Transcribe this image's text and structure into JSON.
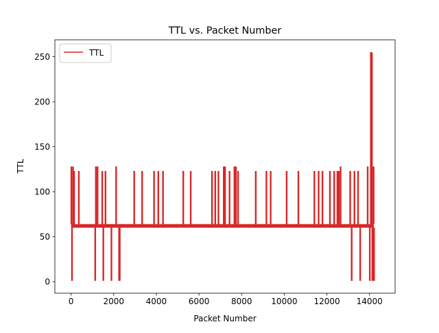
{
  "chart_data": {
    "type": "line",
    "title": "TTL vs. Packet Number",
    "xlabel": "Packet Number",
    "ylabel": "TTL",
    "xlim": [
      -760,
      15200
    ],
    "ylim": [
      -12.75,
      268.75
    ],
    "xticks": [
      0,
      2000,
      4000,
      6000,
      8000,
      10000,
      12000,
      14000
    ],
    "yticks": [
      0,
      50,
      100,
      150,
      200,
      250
    ],
    "grid": false,
    "legend_position": "top-left",
    "series": [
      {
        "name": "TTL",
        "color": "#d62728",
        "baseline_range": [
          60,
          64
        ],
        "baseline_x_range": [
          0,
          14200
        ],
        "spikes": [
          {
            "x": 0,
            "y": 128
          },
          {
            "x": 30,
            "y": 1
          },
          {
            "x": 80,
            "y": 128
          },
          {
            "x": 130,
            "y": 123
          },
          {
            "x": 350,
            "y": 123
          },
          {
            "x": 1120,
            "y": 1
          },
          {
            "x": 1150,
            "y": 128
          },
          {
            "x": 1230,
            "y": 128
          },
          {
            "x": 1450,
            "y": 123
          },
          {
            "x": 1500,
            "y": 1
          },
          {
            "x": 1600,
            "y": 123
          },
          {
            "x": 1880,
            "y": 1
          },
          {
            "x": 2100,
            "y": 128
          },
          {
            "x": 2240,
            "y": 1
          },
          {
            "x": 2270,
            "y": 1
          },
          {
            "x": 2950,
            "y": 123
          },
          {
            "x": 3320,
            "y": 123
          },
          {
            "x": 3880,
            "y": 123
          },
          {
            "x": 4080,
            "y": 123
          },
          {
            "x": 4300,
            "y": 123
          },
          {
            "x": 5250,
            "y": 123
          },
          {
            "x": 5600,
            "y": 123
          },
          {
            "x": 6600,
            "y": 123
          },
          {
            "x": 6750,
            "y": 123
          },
          {
            "x": 6900,
            "y": 123
          },
          {
            "x": 7150,
            "y": 128
          },
          {
            "x": 7210,
            "y": 128
          },
          {
            "x": 7420,
            "y": 123
          },
          {
            "x": 7650,
            "y": 128
          },
          {
            "x": 7720,
            "y": 128
          },
          {
            "x": 7820,
            "y": 123
          },
          {
            "x": 8650,
            "y": 123
          },
          {
            "x": 9150,
            "y": 123
          },
          {
            "x": 9350,
            "y": 123
          },
          {
            "x": 10100,
            "y": 123
          },
          {
            "x": 10650,
            "y": 123
          },
          {
            "x": 11400,
            "y": 123
          },
          {
            "x": 11600,
            "y": 123
          },
          {
            "x": 11780,
            "y": 123
          },
          {
            "x": 12130,
            "y": 123
          },
          {
            "x": 12330,
            "y": 123
          },
          {
            "x": 12480,
            "y": 123
          },
          {
            "x": 12550,
            "y": 123
          },
          {
            "x": 12630,
            "y": 128
          },
          {
            "x": 13080,
            "y": 123
          },
          {
            "x": 13150,
            "y": 1
          },
          {
            "x": 13280,
            "y": 123
          },
          {
            "x": 13450,
            "y": 123
          },
          {
            "x": 13550,
            "y": 1
          },
          {
            "x": 13900,
            "y": 128
          },
          {
            "x": 14000,
            "y": 1
          },
          {
            "x": 14050,
            "y": 255
          },
          {
            "x": 14080,
            "y": 255
          },
          {
            "x": 14100,
            "y": 254
          },
          {
            "x": 14120,
            "y": 1
          },
          {
            "x": 14150,
            "y": 1
          },
          {
            "x": 14180,
            "y": 128
          },
          {
            "x": 14200,
            "y": 1
          }
        ]
      }
    ]
  }
}
